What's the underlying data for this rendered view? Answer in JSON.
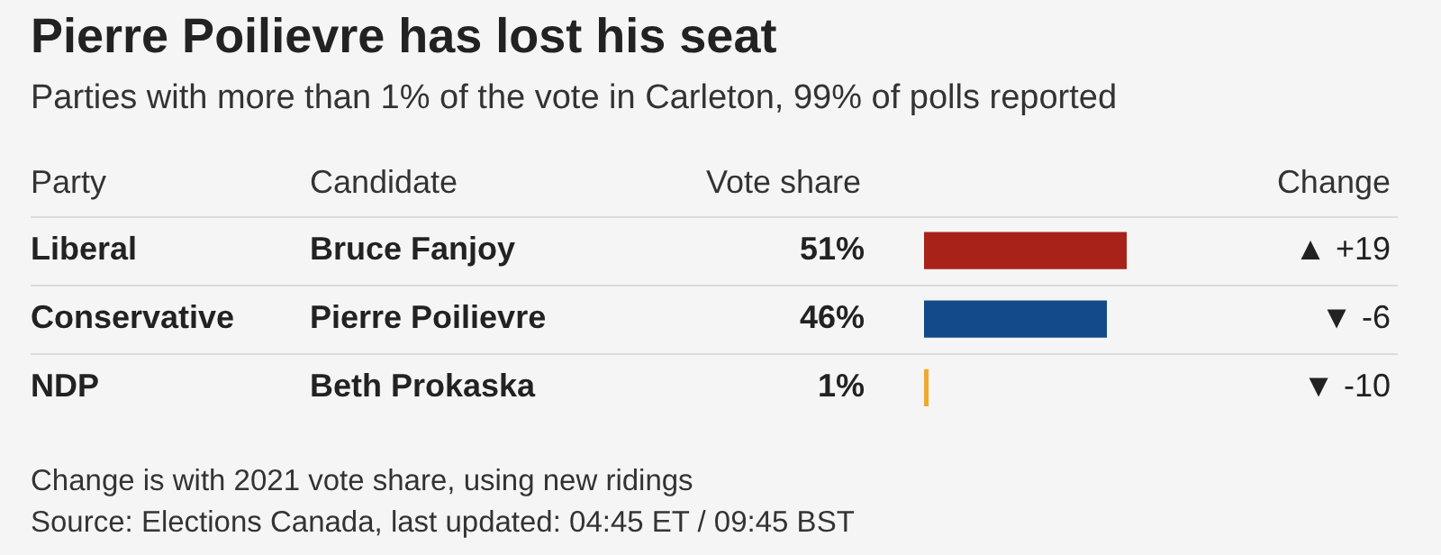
{
  "chart_data": {
    "type": "bar",
    "orientation": "horizontal",
    "title": "Pierre Poilievre has lost his seat",
    "subtitle": "Parties with more than 1% of the vote in Carleton, 99% of polls reported",
    "ylabel": "Party",
    "xlabel": "Vote share",
    "categories": [
      "Liberal",
      "Conservative",
      "NDP"
    ],
    "values": [
      51,
      46,
      1
    ],
    "value_labels": [
      "51%",
      "46%",
      "1%"
    ],
    "colors": [
      "#a8221a",
      "#124b87",
      "#f0a830"
    ],
    "annotations": [
      "Candidate",
      "Change",
      "Bruce Fanjoy",
      "▲ +19",
      "Pierre Poilievre",
      "▼ -6",
      "Beth Prokaska",
      "▼ -10",
      "Change is with 2021 vote share, using new ridings",
      "Source: Elections Canada, last updated: 04:45 ET / 09:45 BST"
    ],
    "legend": false,
    "grid": false
  }
}
